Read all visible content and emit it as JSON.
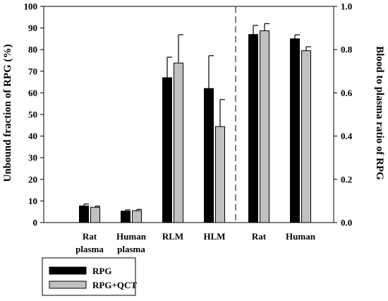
{
  "chart_data": {
    "type": "bar",
    "categories": [
      [
        "Rat",
        "plasma"
      ],
      [
        "Human",
        "plasma"
      ],
      [
        "RLM"
      ],
      [
        "HLM"
      ],
      [
        "Rat"
      ],
      [
        "Human"
      ]
    ],
    "series": [
      {
        "name": "RPG",
        "color": "#000000",
        "values": [
          0.077,
          0.053,
          0.67,
          0.62,
          0.87,
          0.85
        ],
        "errors": [
          0.009,
          0.006,
          0.095,
          0.152,
          0.042,
          0.018
        ]
      },
      {
        "name": "RPG+QCT",
        "color": "#c0c0c0",
        "values": [
          0.071,
          0.055,
          0.738,
          0.444,
          0.887,
          0.795
        ],
        "errors": [
          0.005,
          0.006,
          0.131,
          0.125,
          0.033,
          0.018
        ]
      }
    ],
    "left_axis": {
      "label": "Unbound fraction of  RPG (%)",
      "min": 0,
      "max": 100,
      "ticks": [
        "0",
        "10",
        "20",
        "30",
        "40",
        "50",
        "60",
        "70",
        "80",
        "90",
        "100"
      ]
    },
    "right_axis": {
      "label": "Blood to plasma ratio of  RPG",
      "min": 0,
      "max": 1,
      "ticks": [
        "0.0",
        "0.2",
        "0.4",
        "0.6",
        "0.8",
        "1.0"
      ]
    },
    "separator": "dashed",
    "legend": {
      "position": "bottom-left",
      "items": [
        "RPG",
        "RPG+QCT"
      ]
    }
  }
}
